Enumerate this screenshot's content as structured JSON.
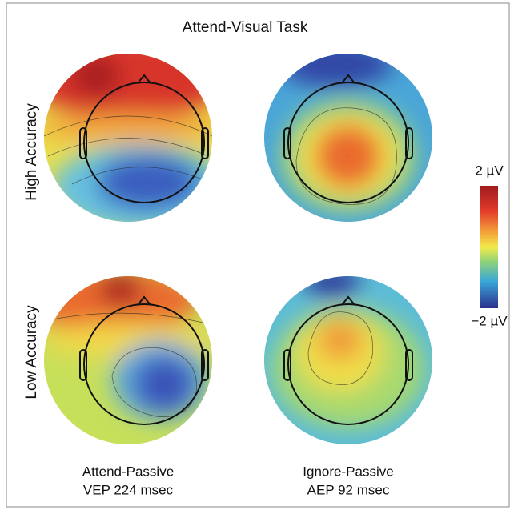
{
  "title": "Attend-Visual Task",
  "rows": [
    "High Accuracy",
    "Low Accuracy"
  ],
  "columns": [
    {
      "condition": "Attend-Passive",
      "measure": "VEP 224 msec"
    },
    {
      "condition": "Ignore-Passive",
      "measure": "AEP 92 msec"
    }
  ],
  "colorbar": {
    "max_label": "2 µV",
    "min_label": "−2 µV"
  }
}
